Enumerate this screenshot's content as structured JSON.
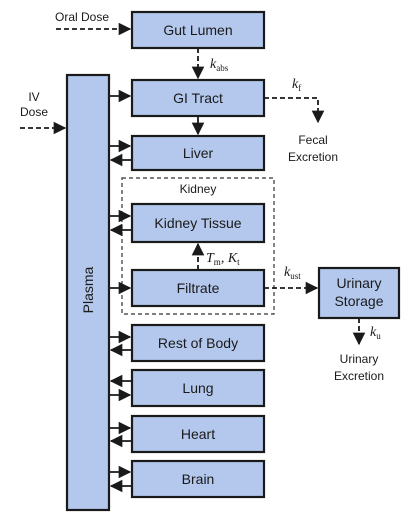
{
  "inputs": {
    "oral_dose": "Oral Dose",
    "iv_dose_line1": "IV",
    "iv_dose_line2": "Dose"
  },
  "compartments": {
    "plasma": "Plasma",
    "gut_lumen": "Gut Lumen",
    "gi_tract": "GI Tract",
    "liver": "Liver",
    "kidney_group": "Kidney",
    "kidney_tissue": "Kidney Tissue",
    "filtrate": "Filtrate",
    "urinary_storage_line1": "Urinary",
    "urinary_storage_line2": "Storage",
    "rest_of_body": "Rest of Body",
    "lung": "Lung",
    "heart": "Heart",
    "brain": "Brain"
  },
  "outputs": {
    "fecal_line1": "Fecal",
    "fecal_line2": "Excretion",
    "urinary_line1": "Urinary",
    "urinary_line2": "Excretion"
  },
  "rate_constants": {
    "k_abs": {
      "symbol": "k",
      "sub": "abs"
    },
    "k_f": {
      "symbol": "k",
      "sub": "f"
    },
    "tm_kt": {
      "sym1": "T",
      "sub1": "m",
      "sep": ", ",
      "sym2": "K",
      "sub2": "t"
    },
    "k_ust": {
      "symbol": "k",
      "sub": "ust"
    },
    "k_u": {
      "symbol": "k",
      "sub": "u"
    }
  },
  "colors": {
    "box_fill": "#b3c8ec",
    "stroke": "#1a1a1a"
  }
}
